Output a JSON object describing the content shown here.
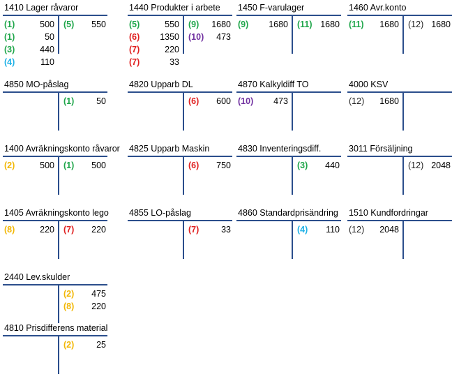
{
  "colors": {
    "1": "#1fa64a",
    "2": "#f2b705",
    "3": "#1fa64a",
    "4": "#1fb1e6",
    "5": "#1fa64a",
    "6": "#e02020",
    "7": "#e02020",
    "8": "#f2b705",
    "9": "#1fa64a",
    "10": "#7030a0",
    "11": "#1fa64a",
    "12": "#222222"
  },
  "accounts": [
    {
      "title": "1410 Lager råvaror",
      "debit": [
        {
          "ref": "(1)",
          "n": "1",
          "amount": "500"
        },
        {
          "ref": "(1)",
          "n": "1",
          "amount": "50"
        },
        {
          "ref": "(3)",
          "n": "3",
          "amount": "440"
        },
        {
          "ref": "(4)",
          "n": "4",
          "amount": "110"
        }
      ],
      "credit": [
        {
          "ref": "(5)",
          "n": "5",
          "amount": "550"
        }
      ]
    },
    {
      "title": "1440 Produkter i arbete",
      "debit": [
        {
          "ref": "(5)",
          "n": "5",
          "amount": "550"
        },
        {
          "ref": "(6)",
          "n": "6",
          "amount": "1350"
        },
        {
          "ref": "(7)",
          "n": "7",
          "amount": "220"
        },
        {
          "ref": "(7)",
          "n": "7",
          "amount": "33"
        }
      ],
      "credit": [
        {
          "ref": "(9)",
          "n": "9",
          "amount": "1680"
        },
        {
          "ref": "(10)",
          "n": "10",
          "amount": "473"
        }
      ]
    },
    {
      "title": "1450 F-varulager",
      "debit": [
        {
          "ref": "(9)",
          "n": "9",
          "amount": "1680"
        }
      ],
      "credit": [
        {
          "ref": "(11)",
          "n": "11",
          "amount": "1680"
        }
      ]
    },
    {
      "title": "1460 Avr.konto",
      "debit": [
        {
          "ref": "(11)",
          "n": "11",
          "amount": "1680"
        }
      ],
      "credit": [
        {
          "ref": "(12)",
          "n": "12",
          "amount": "1680"
        }
      ]
    },
    {
      "title": "4850 MO-påslag",
      "debit": [],
      "credit": [
        {
          "ref": "(1)",
          "n": "1",
          "amount": "50"
        }
      ]
    },
    {
      "title": "4820 Upparb DL",
      "debit": [],
      "credit": [
        {
          "ref": "(6)",
          "n": "6",
          "amount": "600"
        }
      ]
    },
    {
      "title": "4870 Kalkyldiff TO",
      "debit": [
        {
          "ref": "(10)",
          "n": "10",
          "amount": "473"
        }
      ],
      "credit": []
    },
    {
      "title": "4000 KSV",
      "debit": [
        {
          "ref": "(12)",
          "n": "12",
          "amount": "1680"
        }
      ],
      "credit": []
    },
    {
      "title": "1400 Avräkningskonto råvaror",
      "debit": [
        {
          "ref": "(2)",
          "n": "2",
          "amount": "500"
        }
      ],
      "credit": [
        {
          "ref": "(1)",
          "n": "1",
          "amount": "500"
        }
      ]
    },
    {
      "title": "4825 Upparb Maskin",
      "debit": [],
      "credit": [
        {
          "ref": "(6)",
          "n": "6",
          "amount": "750"
        }
      ]
    },
    {
      "title": "4830 Inventeringsdiff.",
      "debit": [],
      "credit": [
        {
          "ref": "(3)",
          "n": "3",
          "amount": "440"
        }
      ]
    },
    {
      "title": "3011 Försäljning",
      "debit": [],
      "credit": [
        {
          "ref": "(12)",
          "n": "12",
          "amount": "2048"
        }
      ]
    },
    {
      "title": "1405 Avräkningskonto lego",
      "debit": [
        {
          "ref": "(8)",
          "n": "8",
          "amount": "220"
        }
      ],
      "credit": [
        {
          "ref": "(7)",
          "n": "7",
          "amount": "220"
        }
      ]
    },
    {
      "title": "4855 LO-påslag",
      "debit": [],
      "credit": [
        {
          "ref": "(7)",
          "n": "7",
          "amount": "33"
        }
      ]
    },
    {
      "title": "4860 Standardprisändring",
      "debit": [],
      "credit": [
        {
          "ref": "(4)",
          "n": "4",
          "amount": "110"
        }
      ]
    },
    {
      "title": "1510  Kundfordringar",
      "debit": [
        {
          "ref": "(12)",
          "n": "12",
          "amount": "2048"
        }
      ],
      "credit": []
    },
    {
      "title": "2440 Lev.skulder",
      "debit": [],
      "credit": [
        {
          "ref": "(2)",
          "n": "2",
          "amount": "475"
        },
        {
          "ref": "(8)",
          "n": "8",
          "amount": "220"
        }
      ]
    },
    {
      "title": "4810 Prisdifferens material",
      "debit": [],
      "credit": [
        {
          "ref": "(2)",
          "n": "2",
          "amount": "25"
        }
      ]
    }
  ]
}
